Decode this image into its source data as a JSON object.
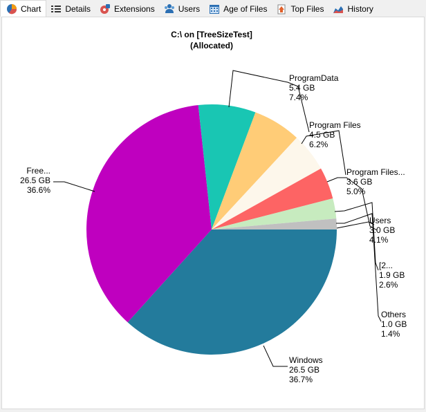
{
  "tabs": [
    {
      "label": "Chart",
      "icon": "pie-chart-icon",
      "active": true
    },
    {
      "label": "Details",
      "icon": "details-list-icon",
      "active": false
    },
    {
      "label": "Extensions",
      "icon": "extensions-icon",
      "active": false
    },
    {
      "label": "Users",
      "icon": "users-icon",
      "active": false
    },
    {
      "label": "Age of Files",
      "icon": "calendar-icon",
      "active": false
    },
    {
      "label": "Top Files",
      "icon": "top-files-icon",
      "active": false
    },
    {
      "label": "History",
      "icon": "history-chart-icon",
      "active": false
    }
  ],
  "chart_data": {
    "type": "pie",
    "title": "C:\\  on  [TreeSizeTest]",
    "subtitle": "(Allocated)",
    "slices": [
      {
        "label": "Windows",
        "size": "26.5 GB",
        "percent": "36.7%",
        "value": 36.7,
        "color": "#237b9c"
      },
      {
        "label": "Free...",
        "size": "26.5 GB",
        "percent": "36.6%",
        "value": 36.6,
        "color": "#bf00bf"
      },
      {
        "label": "ProgramData",
        "size": "5.4 GB",
        "percent": "7.4%",
        "value": 7.4,
        "color": "#19c6b3"
      },
      {
        "label": "Program Files",
        "size": "4.5 GB",
        "percent": "6.2%",
        "value": 6.2,
        "color": "#ffcc77"
      },
      {
        "label": "Program Files...",
        "size": "3.6 GB",
        "percent": "5.0%",
        "value": 5.0,
        "color": "#fdf7eb"
      },
      {
        "label": "Users",
        "size": "3.0 GB",
        "percent": "4.1%",
        "value": 4.1,
        "color": "#fd6464"
      },
      {
        "label": "[2...",
        "size": "1.9 GB",
        "percent": "2.6%",
        "value": 2.6,
        "color": "#c7ebbf"
      },
      {
        "label": "Others",
        "size": "1.0 GB",
        "percent": "1.4%",
        "value": 1.4,
        "color": "#c0c0c0"
      }
    ]
  }
}
